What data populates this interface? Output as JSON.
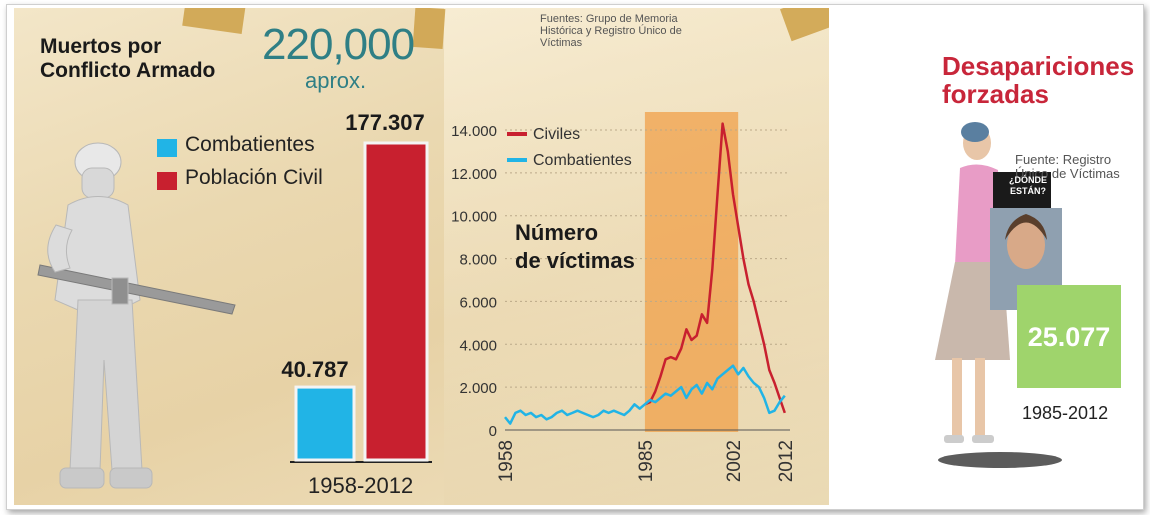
{
  "left_panel": {
    "title": "Muertos por Conflicto Armado",
    "total": "220,000",
    "total_note": "aprox.",
    "sources": "Fuentes: Grupo de Memoria Histórica y Registro Único de Víctimas",
    "years": "1958-2012"
  },
  "right_panel": {
    "title": "Desapariciones forzadas",
    "source": "Fuente: Registro Único de Víctimas",
    "sign_text": "¿DÓNDE ESTÁN?",
    "value": "25.077",
    "years": "1985-2012"
  },
  "colors": {
    "combatientes": "#21b4e6",
    "civiles": "#c8202f",
    "highlight": "#f0a049",
    "green_box": "#9fd46c",
    "title_red": "#c8263a",
    "total_teal": "#2f7f85"
  },
  "chart_data": [
    {
      "type": "bar",
      "categories": [
        "Combatientes",
        "Población Civil"
      ],
      "values": [
        40787,
        177307
      ],
      "value_labels": [
        "40.787",
        "177.307"
      ],
      "legend": [
        "Combatientes",
        "Población Civil"
      ],
      "xlabel": "1958-2012"
    },
    {
      "type": "line",
      "title": "Número de víctimas",
      "x_tick_labels": [
        "1958",
        "1985",
        "2002",
        "2012"
      ],
      "y_tick_labels": [
        "0",
        "2.000",
        "4.000",
        "6.000",
        "8.000",
        "10.000",
        "12.000",
        "14.000"
      ],
      "ylim": [
        0,
        14000
      ],
      "xlim": [
        1958,
        2013
      ],
      "highlight_range": [
        1985,
        2003
      ],
      "series": [
        {
          "name": "Civiles",
          "x": [
            1985,
            1986,
            1987,
            1988,
            1989,
            1990,
            1991,
            1992,
            1993,
            1994,
            1995,
            1996,
            1997,
            1998,
            1999,
            2000,
            2001,
            2002,
            2003,
            2004,
            2005,
            2006,
            2007,
            2008,
            2009,
            2010,
            2011,
            2012
          ],
          "values": [
            1200,
            1300,
            1800,
            2500,
            3300,
            3400,
            3300,
            3800,
            4700,
            4200,
            4400,
            5400,
            5000,
            7500,
            11000,
            14300,
            13000,
            11000,
            9500,
            8000,
            6800,
            6000,
            5000,
            4000,
            2800,
            2200,
            1500,
            800
          ]
        },
        {
          "name": "Combatientes",
          "x": [
            1958,
            1959,
            1960,
            1961,
            1962,
            1963,
            1964,
            1965,
            1966,
            1967,
            1968,
            1969,
            1970,
            1971,
            1972,
            1973,
            1974,
            1975,
            1976,
            1977,
            1978,
            1979,
            1980,
            1981,
            1982,
            1983,
            1984,
            1985,
            1986,
            1987,
            1988,
            1989,
            1990,
            1991,
            1992,
            1993,
            1994,
            1995,
            1996,
            1997,
            1998,
            1999,
            2000,
            2001,
            2002,
            2003,
            2004,
            2005,
            2006,
            2007,
            2008,
            2009,
            2010,
            2011,
            2012
          ],
          "values": [
            600,
            300,
            800,
            900,
            700,
            800,
            600,
            700,
            500,
            600,
            800,
            900,
            700,
            800,
            900,
            800,
            700,
            600,
            700,
            900,
            800,
            900,
            800,
            700,
            900,
            1200,
            1000,
            1200,
            1400,
            1300,
            1500,
            1700,
            1600,
            1800,
            2000,
            1500,
            1900,
            2100,
            1700,
            2200,
            1900,
            2400,
            2600,
            2800,
            3000,
            2600,
            2900,
            2500,
            2200,
            2000,
            1500,
            800,
            900,
            1300,
            1600
          ]
        }
      ]
    },
    {
      "type": "bar",
      "categories": [
        "1985-2012"
      ],
      "values": [
        25077
      ],
      "value_labels": [
        "25.077"
      ]
    }
  ]
}
